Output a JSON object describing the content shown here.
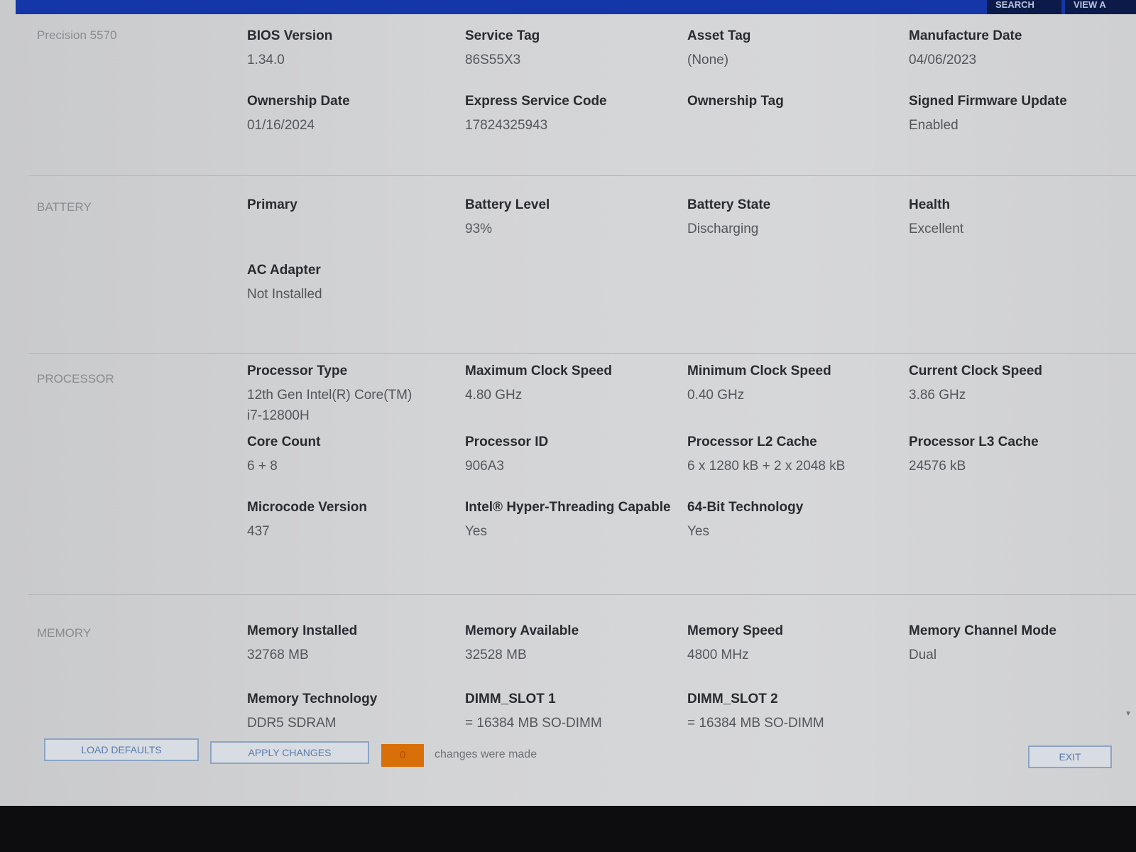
{
  "header": {
    "tabs": [
      {
        "label": "SEARCH"
      },
      {
        "label": "VIEW A"
      }
    ]
  },
  "sections": [
    {
      "label": "Precision 5570",
      "fields": [
        {
          "label": "BIOS Version",
          "value": "1.34.0"
        },
        {
          "label": "Service Tag",
          "value": "86S55X3"
        },
        {
          "label": "Asset Tag",
          "value": "(None)"
        },
        {
          "label": "Manufacture Date",
          "value": "04/06/2023"
        },
        {
          "label": "Ownership Date",
          "value": "01/16/2024"
        },
        {
          "label": "Express Service Code",
          "value": "17824325943"
        },
        {
          "label": "Ownership Tag",
          "value": ""
        },
        {
          "label": "Signed Firmware Update",
          "value": "Enabled"
        }
      ]
    },
    {
      "label": "BATTERY",
      "fields": [
        {
          "label": "Primary",
          "value": ""
        },
        {
          "label": "Battery Level",
          "value": "93%"
        },
        {
          "label": "Battery State",
          "value": "Discharging"
        },
        {
          "label": "Health",
          "value": "Excellent"
        },
        {
          "label": "AC Adapter",
          "value": "Not Installed"
        }
      ]
    },
    {
      "label": "PROCESSOR",
      "fields": [
        {
          "label": "Processor Type",
          "value": "12th Gen Intel(R) Core(TM) i7-12800H"
        },
        {
          "label": "Maximum Clock Speed",
          "value": "4.80 GHz"
        },
        {
          "label": "Minimum Clock Speed",
          "value": "0.40 GHz"
        },
        {
          "label": "Current Clock Speed",
          "value": "3.86 GHz"
        },
        {
          "label": "Core Count",
          "value": "6 + 8"
        },
        {
          "label": "Processor ID",
          "value": "906A3"
        },
        {
          "label": "Processor L2 Cache",
          "value": "6 x 1280  kB + 2 x 2048  kB"
        },
        {
          "label": "Processor L3 Cache",
          "value": "24576 kB"
        },
        {
          "label": "Microcode Version",
          "value": "437"
        },
        {
          "label": "Intel® Hyper-Threading Capable",
          "value": " Yes"
        },
        {
          "label": "64-Bit Technology",
          "value": " Yes"
        }
      ]
    },
    {
      "label": "MEMORY",
      "fields": [
        {
          "label": "Memory Installed",
          "value": "32768 MB"
        },
        {
          "label": "Memory Available",
          "value": "32528 MB"
        },
        {
          "label": "Memory Speed",
          "value": "4800 MHz"
        },
        {
          "label": "Memory Channel Mode",
          "value": "Dual"
        },
        {
          "label": "Memory Technology",
          "value": "DDR5 SDRAM"
        },
        {
          "label": "DIMM_SLOT 1",
          "value": "= 16384 MB SO-DIMM"
        },
        {
          "label": "DIMM_SLOT 2",
          "value": "= 16384 MB SO-DIMM"
        }
      ]
    }
  ],
  "footer": {
    "load_defaults": "LOAD DEFAULTS",
    "apply_changes": "APPLY CHANGES",
    "change_count": "0",
    "changes_text": "changes were made",
    "exit": "EXIT"
  },
  "colors": {
    "topbar": "#1436a8",
    "count_badge": "#d86f08"
  }
}
